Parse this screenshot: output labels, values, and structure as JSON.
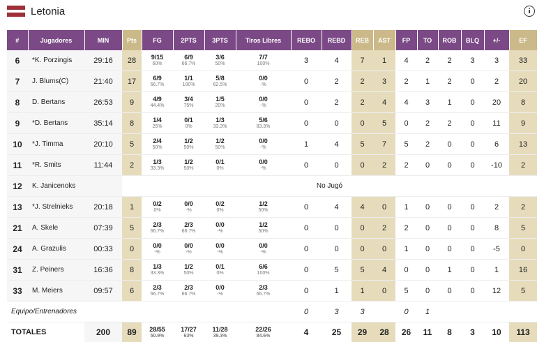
{
  "header": {
    "title": "Letonia",
    "info": "i"
  },
  "table": {
    "columns": [
      "#",
      "Jugadores",
      "MIN",
      "Pts",
      "FG",
      "2PTS",
      "3PTS",
      "Tiros Libres",
      "REBO",
      "REBD",
      "REB",
      "AST",
      "FP",
      "TO",
      "ROB",
      "BLQ",
      "+/-",
      "EF"
    ],
    "rows": [
      {
        "cells": [
          6,
          "*K. Porzingis",
          "29:16",
          28,
          {
            "made": "9/15",
            "pct": "60%"
          },
          {
            "made": "6/9",
            "pct": "66.7%"
          },
          {
            "made": "3/6",
            "pct": "50%"
          },
          {
            "made": "7/7",
            "pct": "100%"
          },
          3,
          4,
          7,
          1,
          4,
          2,
          2,
          3,
          3,
          33
        ]
      },
      {
        "cells": [
          7,
          "J. Blums(C)",
          "21:40",
          17,
          {
            "made": "6/9",
            "pct": "66.7%"
          },
          {
            "made": "1/1",
            "pct": "100%"
          },
          {
            "made": "5/8",
            "pct": "62.5%"
          },
          {
            "made": "0/0",
            "pct": "-%"
          },
          0,
          2,
          2,
          3,
          2,
          1,
          2,
          0,
          2,
          20
        ]
      },
      {
        "cells": [
          8,
          "D. Bertans",
          "26:53",
          9,
          {
            "made": "4/9",
            "pct": "44.4%"
          },
          {
            "made": "3/4",
            "pct": "75%"
          },
          {
            "made": "1/5",
            "pct": "20%"
          },
          {
            "made": "0/0",
            "pct": "-%"
          },
          0,
          2,
          2,
          4,
          4,
          3,
          1,
          0,
          20,
          8
        ]
      },
      {
        "cells": [
          9,
          "*D. Bertans",
          "35:14",
          8,
          {
            "made": "1/4",
            "pct": "25%"
          },
          {
            "made": "0/1",
            "pct": "0%"
          },
          {
            "made": "1/3",
            "pct": "33.3%"
          },
          {
            "made": "5/6",
            "pct": "83.3%"
          },
          0,
          0,
          0,
          5,
          0,
          2,
          2,
          0,
          11,
          9
        ]
      },
      {
        "cells": [
          10,
          "*J. Timma",
          "20:10",
          5,
          {
            "made": "2/4",
            "pct": "50%"
          },
          {
            "made": "1/2",
            "pct": "50%"
          },
          {
            "made": "1/2",
            "pct": "50%"
          },
          {
            "made": "0/0",
            "pct": "-%"
          },
          1,
          4,
          5,
          7,
          5,
          2,
          0,
          0,
          6,
          13
        ]
      },
      {
        "cells": [
          11,
          "*R. Smits",
          "11:44",
          2,
          {
            "made": "1/3",
            "pct": "33.3%"
          },
          {
            "made": "1/2",
            "pct": "50%"
          },
          {
            "made": "0/1",
            "pct": "0%"
          },
          {
            "made": "0/0",
            "pct": "-%"
          },
          0,
          0,
          0,
          2,
          2,
          0,
          0,
          0,
          -10,
          2
        ]
      },
      {
        "cells": [
          12,
          "K. Janicenoks"
        ],
        "note": "No Jugó"
      },
      {
        "cells": [
          13,
          "*J. Strelnieks",
          "20:18",
          1,
          {
            "made": "0/2",
            "pct": "0%"
          },
          {
            "made": "0/0",
            "pct": "-%"
          },
          {
            "made": "0/2",
            "pct": "0%"
          },
          {
            "made": "1/2",
            "pct": "50%"
          },
          0,
          4,
          4,
          0,
          1,
          0,
          0,
          0,
          2,
          2
        ]
      },
      {
        "cells": [
          21,
          "A. Skele",
          "07:39",
          5,
          {
            "made": "2/3",
            "pct": "66.7%"
          },
          {
            "made": "2/3",
            "pct": "66.7%"
          },
          {
            "made": "0/0",
            "pct": "-%"
          },
          {
            "made": "1/2",
            "pct": "50%"
          },
          0,
          0,
          0,
          2,
          2,
          0,
          0,
          0,
          8,
          5
        ]
      },
      {
        "cells": [
          24,
          "A. Grazulis",
          "00:33",
          0,
          {
            "made": "0/0",
            "pct": "-%"
          },
          {
            "made": "0/0",
            "pct": "-%"
          },
          {
            "made": "0/0",
            "pct": "-%"
          },
          {
            "made": "0/0",
            "pct": "-%"
          },
          0,
          0,
          0,
          0,
          1,
          0,
          0,
          0,
          -5,
          0
        ]
      },
      {
        "cells": [
          31,
          "Z. Peiners",
          "16:36",
          8,
          {
            "made": "1/3",
            "pct": "33.3%"
          },
          {
            "made": "1/2",
            "pct": "50%"
          },
          {
            "made": "0/1",
            "pct": "0%"
          },
          {
            "made": "6/6",
            "pct": "100%"
          },
          0,
          5,
          5,
          4,
          0,
          0,
          1,
          0,
          1,
          16
        ]
      },
      {
        "cells": [
          33,
          "M. Meiers",
          "09:57",
          6,
          {
            "made": "2/3",
            "pct": "66.7%"
          },
          {
            "made": "2/3",
            "pct": "66.7%"
          },
          {
            "made": "0/0",
            "pct": "-%"
          },
          {
            "made": "2/3",
            "pct": "66.7%"
          },
          0,
          1,
          1,
          0,
          5,
          0,
          0,
          0,
          12,
          5
        ]
      }
    ],
    "team_row": {
      "label": "Equipo/Entrenadores",
      "cells": [
        null,
        null,
        null,
        null,
        null,
        0,
        3,
        3,
        null,
        0,
        1,
        null,
        null,
        null,
        null
      ]
    },
    "totals": {
      "label": "TOTALES",
      "cells": [
        200,
        89,
        {
          "made": "28/55",
          "pct": "50.9%"
        },
        {
          "made": "17/27",
          "pct": "63%"
        },
        {
          "made": "11/28",
          "pct": "39.3%"
        },
        {
          "made": "22/26",
          "pct": "84.6%"
        },
        4,
        25,
        29,
        28,
        26,
        11,
        8,
        3,
        10,
        113
      ]
    }
  }
}
